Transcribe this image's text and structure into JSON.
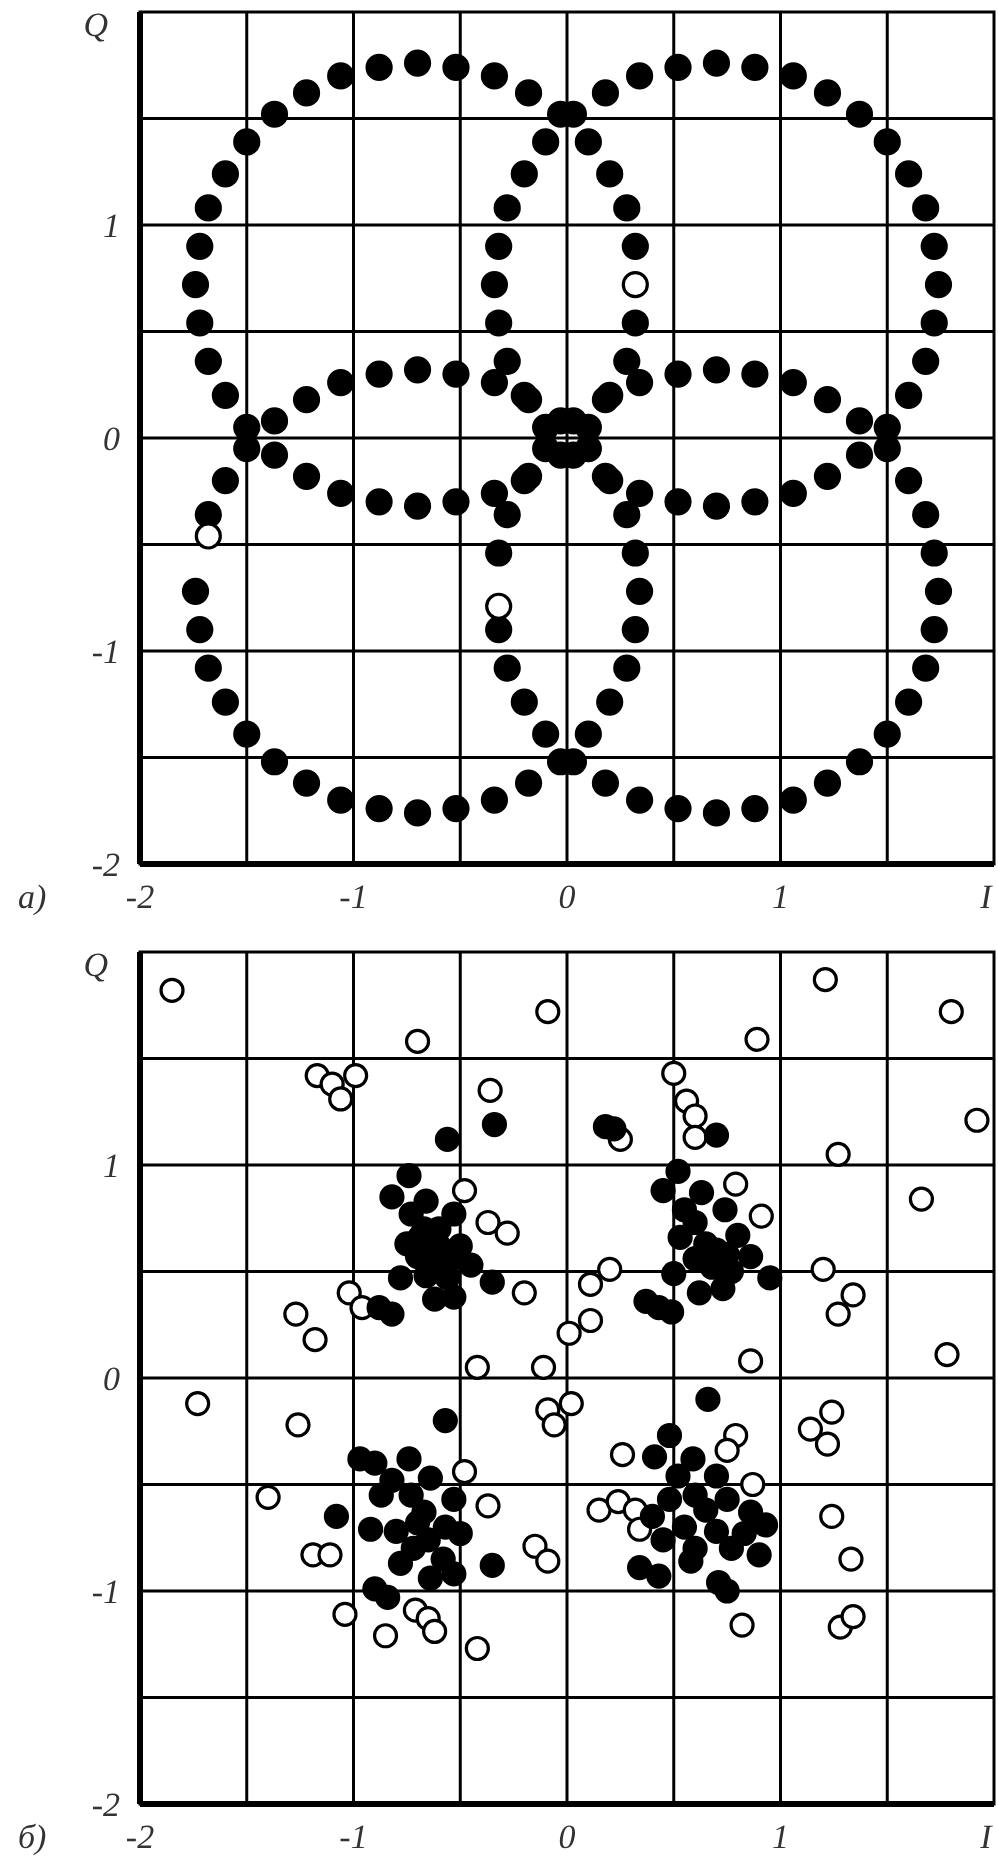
{
  "chart_data": [
    {
      "type": "scatter",
      "title": "а)",
      "xlabel": "I",
      "ylabel": "Q",
      "xlim": [
        -2,
        2
      ],
      "ylim": [
        -2,
        2
      ],
      "xticks": [
        -2,
        {
          "value": -1.5,
          "label": null
        },
        -1,
        {
          "value": -0.5,
          "label": null
        },
        0,
        {
          "value": 0.5,
          "label": null
        },
        1,
        {
          "value": 1.5,
          "label": null
        }
      ],
      "yticks": [
        -2,
        {
          "value": -1.5,
          "label": null
        },
        -1,
        {
          "value": -0.5,
          "label": null
        },
        0,
        {
          "value": 0.5,
          "label": null
        },
        1,
        {
          "value": 1.5,
          "label": null
        }
      ],
      "grid": true,
      "marker": "circle",
      "series": [
        {
          "color": "#000000",
          "x": [
            0.32,
            0.28,
            0.2,
            0.1,
            -0.03,
            -0.18,
            -0.34,
            -0.52,
            -0.7,
            -0.88,
            -1.06,
            -1.22,
            -1.37,
            -1.5,
            -1.6,
            -1.68,
            -1.72,
            -1.74,
            -1.72,
            -1.68,
            -1.6,
            -1.5,
            -1.37,
            -1.22,
            -1.06,
            -0.88,
            -0.7,
            -0.52,
            -0.34,
            -0.18,
            -0.03,
            0.1,
            0.2,
            0.28,
            0.32,
            1.74,
            1.72,
            1.68,
            1.6,
            1.5,
            1.37,
            1.22,
            1.06,
            0.88,
            0.7,
            0.52,
            0.34,
            0.18,
            0.03,
            -0.1,
            -0.2,
            -0.28,
            -0.32,
            -0.34,
            -0.32,
            -0.28,
            -0.2,
            -0.1,
            0.03,
            0.18,
            0.34,
            0.52,
            0.7,
            0.88,
            1.06,
            1.22,
            1.37,
            1.5,
            1.6,
            1.68,
            1.72,
            0.34,
            0.32,
            0.28,
            0.2,
            0.1,
            -0.03,
            -0.18,
            -0.34,
            -0.52,
            -0.7,
            -0.88,
            -1.06,
            -1.22,
            -1.37,
            -1.5,
            -1.6,
            -1.68,
            -1.74,
            -1.72,
            -1.68,
            -1.6,
            -1.5,
            -1.37,
            -1.22,
            -1.06,
            -0.88,
            -0.7,
            -0.52,
            -0.34,
            -0.18,
            -0.03,
            0.1,
            0.2,
            0.28,
            0.32,
            1.74,
            1.72,
            1.68,
            1.6,
            1.5,
            1.37,
            1.22,
            1.06,
            0.88,
            0.7,
            0.52,
            0.34,
            0.18,
            0.03,
            -0.1,
            -0.2,
            -0.28,
            -0.32,
            -0.32,
            -0.28,
            -0.2,
            -0.1,
            0.03,
            0.18,
            0.34,
            0.52,
            0.7,
            0.88,
            1.06,
            1.22,
            1.37,
            1.5,
            1.6,
            1.68,
            1.72
          ],
          "values": [
            0.9,
            1.08,
            1.24,
            1.39,
            1.52,
            1.62,
            1.7,
            1.74,
            1.76,
            1.74,
            1.7,
            1.62,
            1.52,
            1.39,
            1.24,
            1.08,
            0.9,
            0.72,
            0.54,
            0.36,
            0.2,
            0.05,
            -0.08,
            -0.18,
            -0.26,
            -0.3,
            -0.32,
            -0.3,
            -0.26,
            -0.18,
            -0.08,
            0.05,
            0.2,
            0.36,
            0.54,
            0.72,
            0.9,
            1.08,
            1.24,
            1.39,
            1.52,
            1.62,
            1.7,
            1.74,
            1.76,
            1.74,
            1.7,
            1.62,
            1.52,
            1.39,
            1.24,
            1.08,
            0.9,
            0.72,
            0.54,
            0.36,
            0.2,
            0.05,
            -0.08,
            -0.18,
            -0.26,
            -0.3,
            -0.32,
            -0.3,
            -0.26,
            -0.18,
            -0.08,
            0.05,
            0.2,
            0.36,
            0.54,
            -0.72,
            -0.54,
            -0.36,
            -0.2,
            -0.05,
            0.08,
            0.18,
            0.26,
            0.3,
            0.32,
            0.3,
            0.26,
            0.18,
            0.08,
            -0.05,
            -0.2,
            -0.36,
            -0.72,
            -0.9,
            -1.08,
            -1.24,
            -1.39,
            -1.52,
            -1.62,
            -1.7,
            -1.74,
            -1.76,
            -1.74,
            -1.7,
            -1.62,
            -1.52,
            -1.39,
            -1.24,
            -1.08,
            -0.9,
            -0.72,
            -0.54,
            -0.36,
            -0.2,
            -0.05,
            0.08,
            0.18,
            0.26,
            0.3,
            0.32,
            0.3,
            0.26,
            0.18,
            0.08,
            -0.05,
            -0.2,
            -0.36,
            -0.54,
            -0.9,
            -1.08,
            -1.24,
            -1.39,
            -1.52,
            -1.62,
            -1.7,
            -1.74,
            -1.76,
            -1.74,
            -1.7,
            -1.62,
            -1.52,
            -1.39,
            -1.24,
            -1.08,
            -0.9
          ]
        },
        {
          "color": "#ffffff",
          "x": [
            0.32,
            -1.68,
            -0.32
          ],
          "values": [
            0.72,
            -0.46,
            -0.79
          ]
        }
      ]
    },
    {
      "type": "scatter",
      "title": "б)",
      "xlabel": "I",
      "ylabel": "Q",
      "xlim": [
        -2,
        2
      ],
      "ylim": [
        -2,
        2
      ],
      "xticks": [
        -2,
        {
          "value": -1.5,
          "label": null
        },
        -1,
        {
          "value": -0.5,
          "label": null
        },
        0,
        {
          "value": 0.5,
          "label": null
        },
        1,
        {
          "value": 1.5,
          "label": null
        }
      ],
      "yticks": [
        -2,
        {
          "value": -1.5,
          "label": null
        },
        -1,
        {
          "value": -0.5,
          "label": null
        },
        0,
        {
          "value": 0.5,
          "label": null
        },
        1,
        {
          "value": 1.5,
          "label": null
        }
      ],
      "grid": true,
      "marker": "circle",
      "series": [
        {
          "color": "#ffffff",
          "x": [
            -1.85,
            -0.09,
            -0.7,
            1.21,
            1.8,
            0.89,
            -1.17,
            -1.1,
            -1.06,
            -0.99,
            -0.36,
            0.5,
            0.56,
            0.6,
            0.6,
            0.25,
            1.92,
            1.27,
            1.66,
            -0.48,
            0.79,
            -0.37,
            -0.28,
            0.91,
            0.2,
            0.11,
            -0.2,
            -1.02,
            -0.96,
            -1.27,
            -1.18,
            1.2,
            1.34,
            1.27,
            0.11,
            0.01,
            1.78,
            0.86,
            -0.42,
            -0.11,
            -1.73,
            0.02,
            -0.09,
            -0.06,
            -1.26,
            1.24,
            1.14,
            1.22,
            0.79,
            0.75,
            0.26,
            -0.48,
            0.87,
            -1.4,
            -0.37,
            0.15,
            0.24,
            0.32,
            0.34,
            1.24,
            -0.15,
            -0.09,
            -1.19,
            -1.11,
            1.33,
            -1.04,
            -0.71,
            -0.65,
            -0.62,
            -0.85,
            -0.42,
            0.82,
            1.28,
            1.34
          ],
          "values": [
            1.82,
            1.72,
            1.58,
            1.87,
            1.72,
            1.59,
            1.42,
            1.38,
            1.31,
            1.42,
            1.35,
            1.43,
            1.3,
            1.23,
            1.13,
            1.12,
            1.21,
            1.05,
            0.84,
            0.88,
            0.91,
            0.73,
            0.68,
            0.76,
            0.51,
            0.44,
            0.4,
            0.4,
            0.33,
            0.3,
            0.18,
            0.51,
            0.39,
            0.3,
            0.27,
            0.21,
            0.11,
            0.08,
            0.05,
            0.05,
            -0.12,
            -0.12,
            -0.15,
            -0.22,
            -0.22,
            -0.16,
            -0.24,
            -0.31,
            -0.27,
            -0.34,
            -0.36,
            -0.44,
            -0.5,
            -0.56,
            -0.6,
            -0.62,
            -0.58,
            -0.62,
            -0.71,
            -0.65,
            -0.79,
            -0.86,
            -0.83,
            -0.83,
            -0.85,
            -1.11,
            -1.09,
            -1.13,
            -1.19,
            -1.21,
            -1.27,
            -1.16,
            -1.17,
            -1.12
          ]
        },
        {
          "color": "#000000",
          "x": [
            -0.74,
            -0.82,
            -0.66,
            -0.73,
            -0.53,
            -0.67,
            -0.75,
            -0.6,
            -0.5,
            -0.7,
            -0.63,
            -0.55,
            -0.45,
            -0.78,
            -0.66,
            -0.56,
            -0.35,
            -0.62,
            -0.53,
            -0.88,
            -0.82,
            -0.56,
            -0.34,
            -0.69,
            -0.6,
            0.18,
            0.22,
            0.7,
            0.52,
            0.45,
            0.63,
            0.55,
            0.74,
            0.6,
            0.8,
            0.53,
            0.65,
            0.75,
            0.86,
            0.6,
            0.68,
            0.5,
            0.77,
            0.95,
            0.62,
            0.73,
            0.37,
            0.43,
            0.49,
            0.7,
            -0.57,
            -0.97,
            -0.9,
            -0.74,
            -0.82,
            -0.64,
            -0.73,
            -0.53,
            -0.87,
            -0.67,
            -0.57,
            -1.08,
            -0.92,
            -0.8,
            -0.65,
            -0.5,
            -0.72,
            -0.58,
            -0.78,
            -0.64,
            -0.53,
            -0.35,
            -0.9,
            -0.84,
            -0.7,
            0.66,
            0.48,
            0.41,
            0.59,
            0.7,
            0.52,
            0.6,
            0.75,
            0.48,
            0.65,
            0.4,
            0.86,
            0.93,
            0.55,
            0.7,
            0.83,
            0.45,
            0.6,
            0.77,
            0.9,
            0.34,
            0.43,
            0.58,
            0.71,
            0.75
          ],
          "values": [
            0.95,
            0.85,
            0.83,
            0.77,
            0.77,
            0.7,
            0.63,
            0.62,
            0.62,
            0.57,
            0.55,
            0.55,
            0.53,
            0.47,
            0.48,
            0.47,
            0.45,
            0.37,
            0.38,
            0.33,
            0.3,
            1.12,
            1.19,
            0.66,
            0.7,
            1.18,
            1.17,
            1.14,
            0.97,
            0.88,
            0.87,
            0.79,
            0.79,
            0.73,
            0.67,
            0.66,
            0.63,
            0.58,
            0.57,
            0.56,
            0.52,
            0.49,
            0.5,
            0.47,
            0.4,
            0.42,
            0.36,
            0.33,
            0.31,
            0.6,
            -0.2,
            -0.38,
            -0.4,
            -0.38,
            -0.48,
            -0.47,
            -0.55,
            -0.57,
            -0.55,
            -0.63,
            -0.7,
            -0.65,
            -0.71,
            -0.72,
            -0.76,
            -0.73,
            -0.8,
            -0.85,
            -0.87,
            -0.94,
            -0.92,
            -0.88,
            -0.99,
            -1.03,
            -0.68,
            -0.1,
            -0.27,
            -0.37,
            -0.38,
            -0.46,
            -0.46,
            -0.55,
            -0.57,
            -0.57,
            -0.62,
            -0.65,
            -0.63,
            -0.69,
            -0.7,
            -0.72,
            -0.73,
            -0.76,
            -0.8,
            -0.8,
            -0.83,
            -0.89,
            -0.93,
            -0.86,
            -0.96,
            -1.0
          ]
        }
      ]
    }
  ]
}
